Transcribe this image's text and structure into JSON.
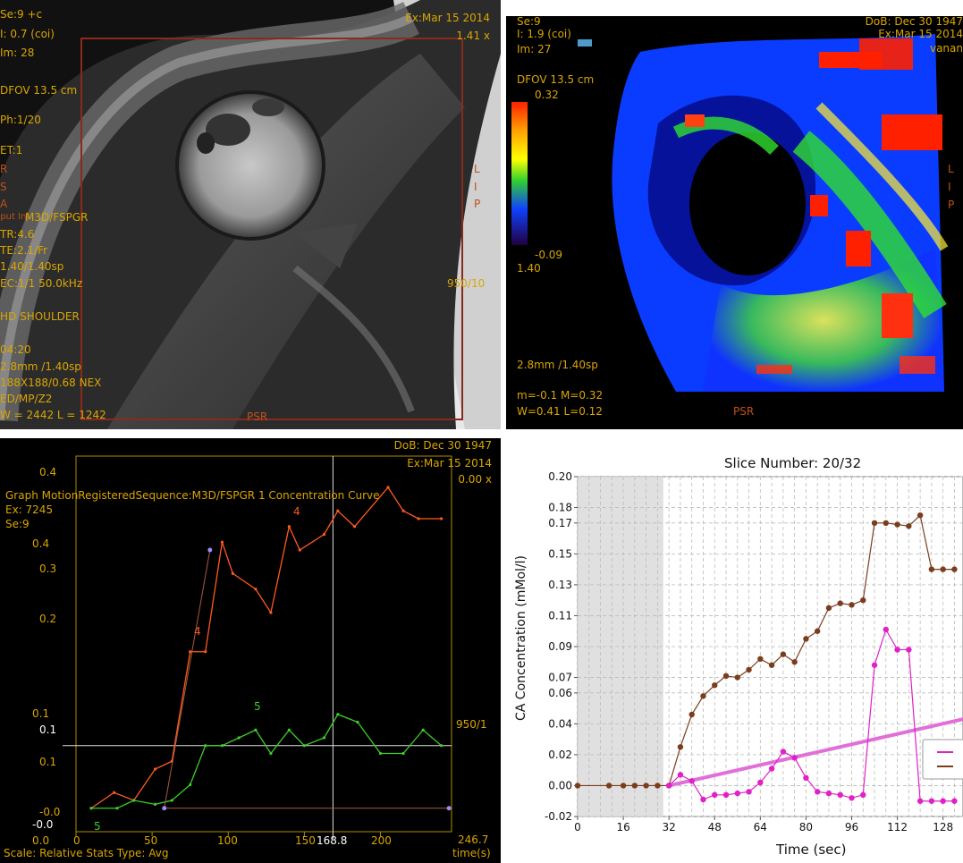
{
  "colors": {
    "overlay_text": "#d9a600",
    "orient_text": "#c0501a",
    "roi_box": "#8b2a1a",
    "curve_orange": "#ff5a1e",
    "curve_green": "#3ccf28",
    "curve_brown": "#7a3d1e",
    "curve_magenta": "#e020c8",
    "fit_line": "#e070d8"
  },
  "tl": {
    "lines_left": [
      "Se:9 +c",
      "I: 0.7 (coi)",
      "Im: 28",
      "DFOV 13.5 cm",
      "Ph:1/20",
      "ET:1"
    ],
    "seq_lines": [
      "M3D/FSPGR",
      "TR:4.6",
      "TE:2.1/Fr",
      "1.40/1.40sp",
      "EC:1/1 50.0kHz"
    ],
    "coil": "HD SHOULDER",
    "bottom_lines": [
      "04:20",
      "2.8mm /1.40sp",
      "188X188/0.68 NEX",
      "ED/MP/Z2",
      "W = 2442 L = 1242"
    ],
    "top_right": [
      "Ex:Mar 15 2014",
      "1.41 x"
    ],
    "orient_left": [
      "R",
      "S",
      "A"
    ],
    "orient_right": [
      "L",
      "I",
      "P"
    ],
    "orient_bottom": "PSR",
    "right_value": "950/10",
    "left_partial": "nput Inl"
  },
  "tr": {
    "lines_left": [
      "Se:9",
      "I: 1.9 (coi)",
      "Im: 27"
    ],
    "dfov": "DFOV 13.5 cm",
    "scale_max": "0.32",
    "scale_min": "-0.09",
    "scale_extra": "1.40",
    "thick": "2.8mm /1.40sp",
    "mval": "m=-0.1 M=0.32",
    "wval": "W=0.41 L=0.12",
    "top_right": [
      "DoB: Dec 30 1947",
      "Ex:Mar 15 2014",
      "vanan"
    ],
    "orient_right": [
      "L",
      "I",
      "P"
    ],
    "orient_bottom": "PSR"
  },
  "bl": {
    "top_right": [
      "DoB: Dec 30 1947",
      "Ex:Mar 15 2014",
      "0.00 x"
    ],
    "graph_title": "Graph MotionRegisteredSequence:M3D/FSPGR 1  Concentration Curve",
    "ex_label": "Ex: 7245",
    "se_label": "Se:9",
    "right_label": "950/1",
    "cursor_label": "168.8",
    "x_end_label": "246.7",
    "x_unit": "time(s)",
    "scale_text": "Scale: Relative Stats Type: Avg",
    "y_ticks": [
      "0.4",
      "0.4",
      "0.3",
      "0.2",
      "0.1",
      "0.1",
      "0.1",
      "-0.0",
      "-0.0",
      "0.0"
    ],
    "x_ticks": [
      "0",
      "50",
      "100",
      "150",
      "200"
    ],
    "label_4": "4",
    "label_5": "5"
  },
  "br": {
    "title": "Slice Number: 20/32",
    "xlabel": "Time (sec)",
    "ylabel": "CA Concentration (mMol/l)",
    "x_ticks": [
      "0",
      "16",
      "32",
      "48",
      "64",
      "80",
      "96",
      "112",
      "128"
    ],
    "y_ticks": [
      "0.20",
      "0.18",
      "0.17",
      "0.15",
      "0.13",
      "0.11",
      "0.09",
      "0.07",
      "0.06",
      "0.04",
      "0.02",
      "0.00",
      "-0.02"
    ]
  },
  "chart_data": [
    {
      "type": "line",
      "title": "Graph MotionRegisteredSequence:M3D/FSPGR 1  Concentration Curve",
      "xlabel": "time(s)",
      "ylabel": "",
      "xlim": [
        0,
        246.7
      ],
      "ylim": [
        -0.03,
        0.45
      ],
      "series": [
        {
          "name": "4",
          "x": [
            10,
            25,
            38,
            52,
            63,
            75,
            85,
            96,
            103,
            118,
            128,
            140,
            147,
            163,
            172,
            183,
            205,
            215,
            225,
            240
          ],
          "y": [
            0.0,
            0.02,
            0.01,
            0.05,
            0.06,
            0.2,
            0.2,
            0.34,
            0.3,
            0.28,
            0.25,
            0.36,
            0.33,
            0.35,
            0.38,
            0.36,
            0.41,
            0.38,
            0.37,
            0.37
          ]
        },
        {
          "name": "5",
          "x": [
            10,
            27,
            38,
            52,
            63,
            75,
            85,
            96,
            107,
            118,
            128,
            140,
            150,
            163,
            172,
            185,
            200,
            215,
            228,
            240
          ],
          "y": [
            0.0,
            0.0,
            0.01,
            0.005,
            0.01,
            0.03,
            0.08,
            0.08,
            0.09,
            0.1,
            0.07,
            0.1,
            0.08,
            0.09,
            0.12,
            0.11,
            0.07,
            0.07,
            0.1,
            0.08
          ]
        }
      ],
      "extra_line": {
        "x": [
          58,
          88
        ],
        "y": [
          0.0,
          0.33
        ]
      },
      "baseline_line": {
        "x": [
          58,
          245
        ],
        "y": [
          0.0,
          0.0
        ]
      },
      "cursor": {
        "x": 168.8
      }
    },
    {
      "type": "line",
      "title": "Slice Number: 20/32",
      "xlabel": "Time (sec)",
      "ylabel": "CA Concentration (mMol/l)",
      "xlim": [
        0,
        135
      ],
      "ylim": [
        -0.02,
        0.2
      ],
      "series": [
        {
          "x": [
            0,
            11,
            16,
            20,
            24,
            28,
            32,
            36,
            40,
            44,
            48,
            52,
            56,
            60,
            64,
            68,
            72,
            76,
            80,
            84,
            88,
            92,
            96,
            100,
            104,
            108,
            112,
            116,
            120,
            124,
            128,
            132
          ],
          "y": [
            0.0,
            0.0,
            0.0,
            0.0,
            0.0,
            0.0,
            0.0,
            0.025,
            0.046,
            0.058,
            0.065,
            0.071,
            0.07,
            0.075,
            0.082,
            0.078,
            0.085,
            0.08,
            0.095,
            0.1,
            0.115,
            0.118,
            0.117,
            0.12,
            0.17,
            0.17,
            0.169,
            0.168,
            0.175,
            0.14,
            0.14,
            0.14
          ]
        },
        {
          "x": [
            32,
            36,
            40,
            44,
            48,
            52,
            56,
            60,
            64,
            68,
            72,
            76,
            80,
            84,
            88,
            92,
            96,
            100,
            104,
            108,
            112,
            116,
            120,
            124,
            128,
            132
          ],
          "y": [
            0.0,
            0.007,
            0.003,
            -0.009,
            -0.006,
            -0.006,
            -0.005,
            -0.004,
            0.002,
            0.011,
            0.022,
            0.018,
            0.005,
            -0.004,
            -0.005,
            -0.006,
            -0.008,
            -0.006,
            0.078,
            0.101,
            0.088,
            0.088,
            -0.01,
            -0.01,
            -0.01,
            -0.01
          ]
        }
      ],
      "fit_line": {
        "x": [
          32,
          135
        ],
        "y": [
          0.0,
          0.043
        ]
      }
    }
  ]
}
